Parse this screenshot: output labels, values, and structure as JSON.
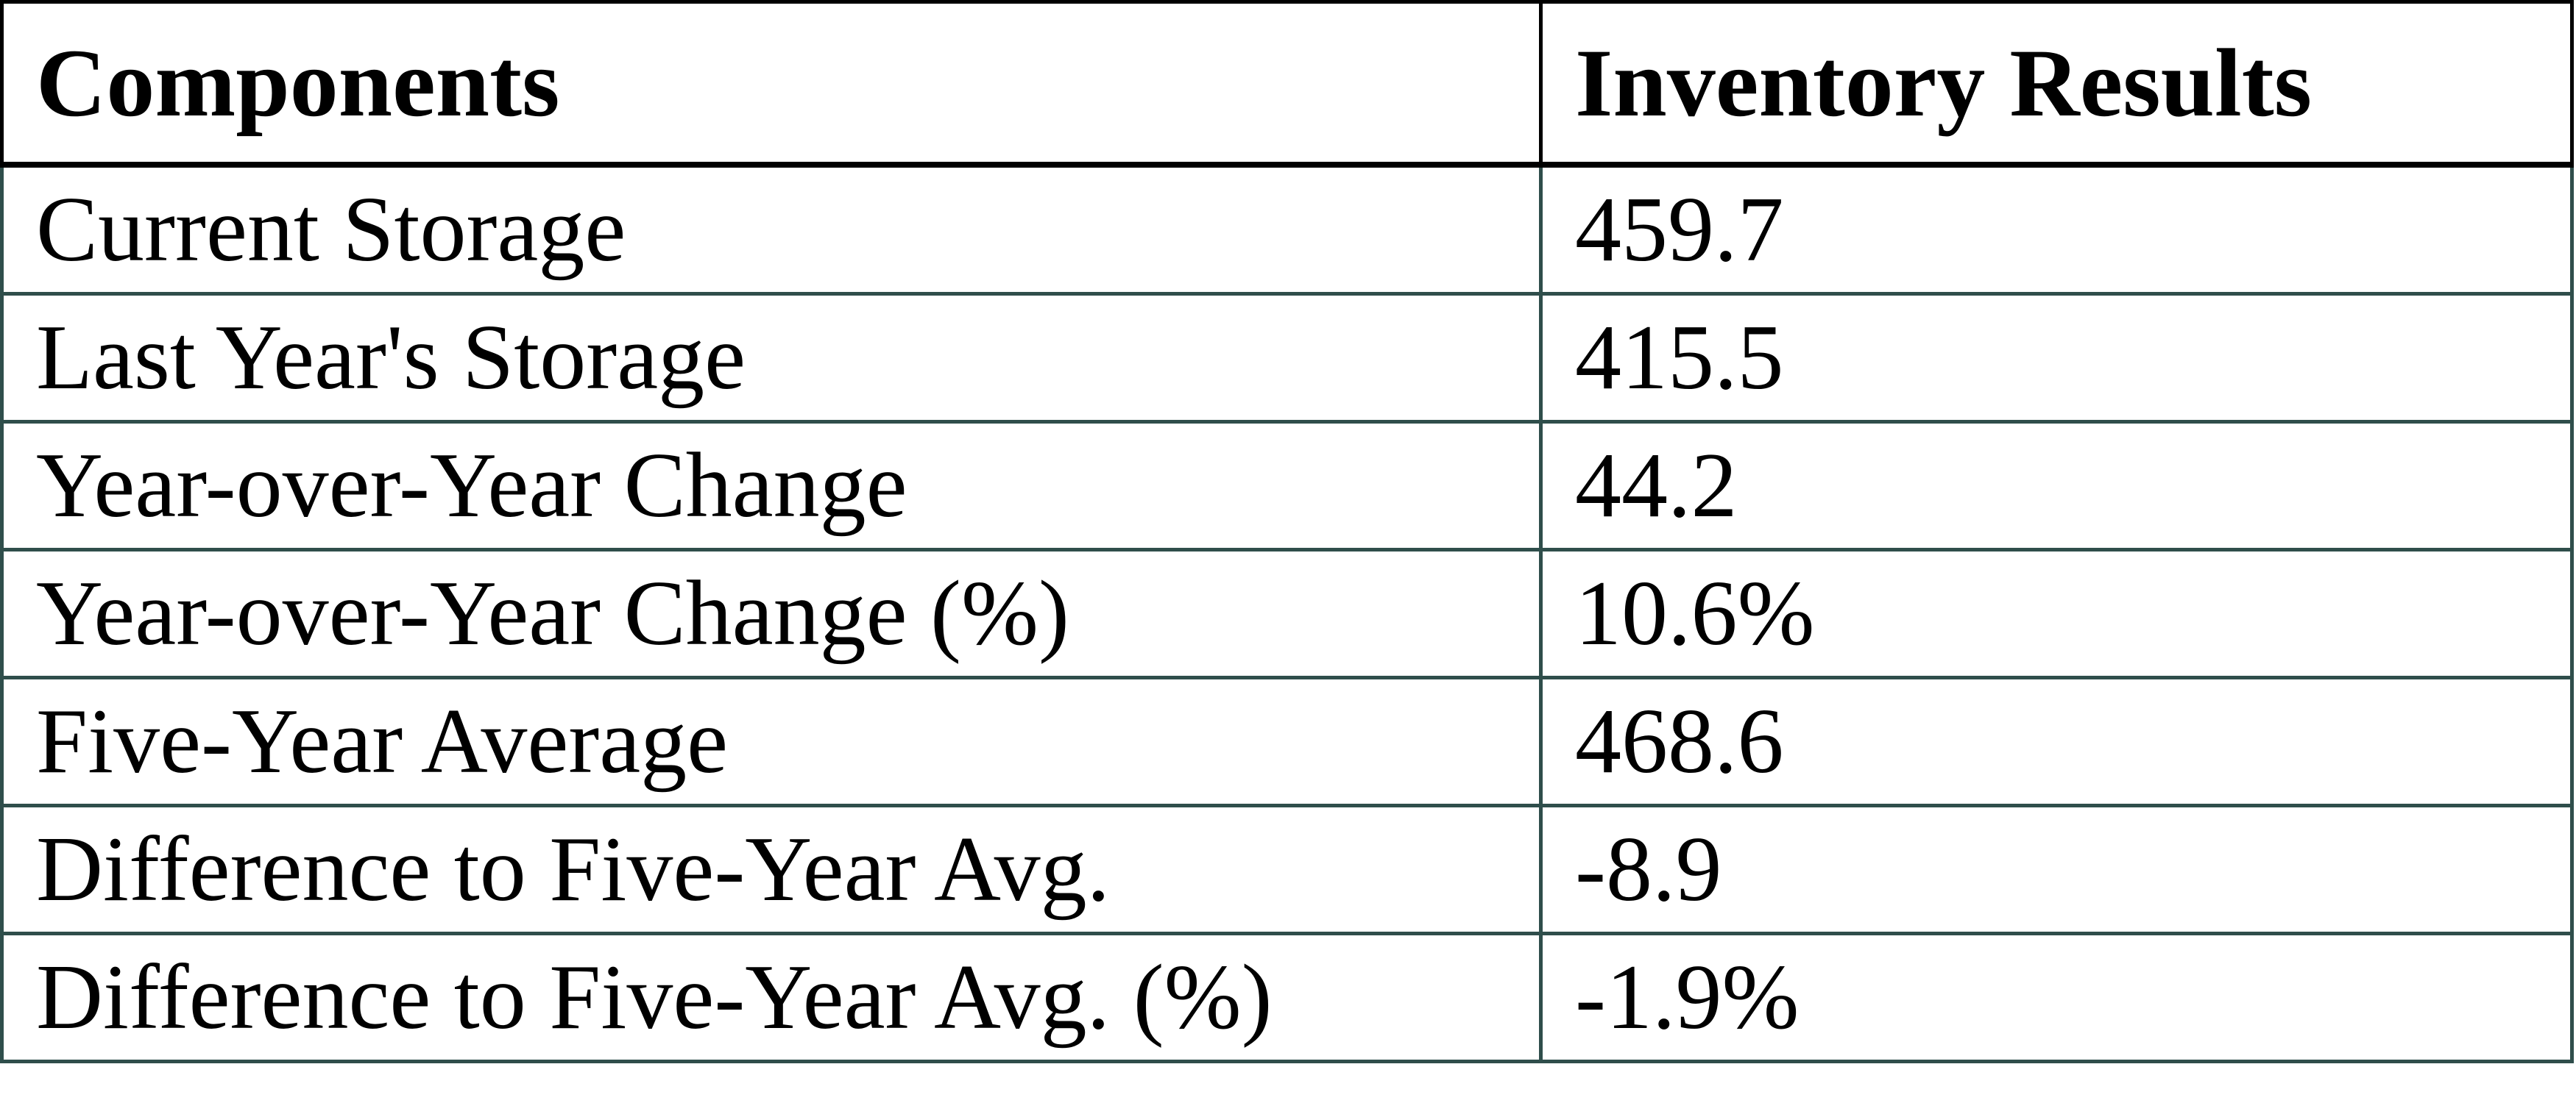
{
  "chart_data": {
    "type": "table",
    "columns": [
      "Components",
      "Inventory Results"
    ],
    "rows": [
      {
        "component": "Current Storage",
        "result": "459.7"
      },
      {
        "component": "Last Year's Storage",
        "result": "415.5"
      },
      {
        "component": "Year-over-Year Change",
        "result": "44.2"
      },
      {
        "component": "Year-over-Year Change (%)",
        "result": "10.6%"
      },
      {
        "component": "Five-Year Average",
        "result": "468.6"
      },
      {
        "component": "Difference to Five-Year Avg.",
        "result": "-8.9"
      },
      {
        "component": "Difference to Five-Year Avg. (%)",
        "result": "-1.9%"
      }
    ]
  },
  "colors": {
    "grid_teal": "#2F4E4B",
    "header_border": "#000000",
    "text": "#000000",
    "background": "#FFFFFF"
  }
}
